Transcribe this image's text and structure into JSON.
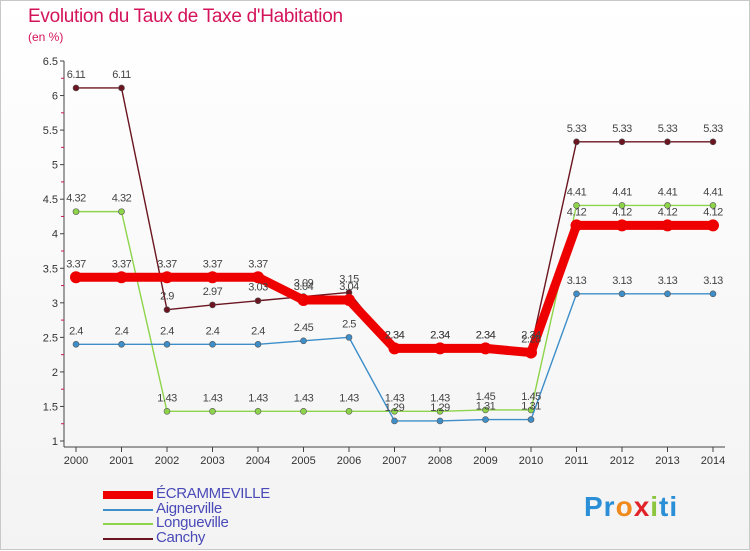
{
  "chart_data": {
    "type": "line",
    "title": "Evolution du Taux de Taxe d'Habitation",
    "subtitle": "(en %)",
    "x": [
      "2000",
      "2001",
      "2002",
      "2003",
      "2004",
      "2005",
      "2006",
      "2007",
      "2008",
      "2009",
      "2010",
      "2011",
      "2012",
      "2013",
      "2014"
    ],
    "ylim": [
      1,
      6.5
    ],
    "yticks": [
      "1",
      "1.5",
      "2",
      "2.5",
      "3",
      "3.5",
      "4",
      "4.5",
      "5",
      "5.5",
      "6",
      "6.5"
    ],
    "grid": false,
    "legend_position": "bottom-left",
    "series": [
      {
        "name": "ÉCRAMMEVILLE",
        "color": "#ee0000",
        "values": [
          3.37,
          3.37,
          3.37,
          3.37,
          3.37,
          3.04,
          3.04,
          2.34,
          2.34,
          2.34,
          2.28,
          4.12,
          4.12,
          4.12,
          4.12
        ],
        "labels": [
          "3.37",
          "3.37",
          "3.37",
          "3.37",
          "3.37",
          "3.04",
          "3.04",
          "2.34",
          "2.34",
          "2.34",
          "2.28",
          "4.12",
          "4.12",
          "4.12",
          "4.12"
        ]
      },
      {
        "name": "Aignerville",
        "color": "#3d8ec9",
        "values": [
          2.4,
          2.4,
          2.4,
          2.4,
          2.4,
          2.45,
          2.5,
          1.29,
          1.29,
          1.31,
          1.31,
          3.13,
          3.13,
          3.13,
          3.13
        ],
        "labels": [
          "2.4",
          "2.4",
          "2.4",
          "2.4",
          "2.4",
          "2.45",
          "2.5",
          "1.29",
          "1.29",
          "1.31",
          "1.31",
          "3.13",
          "3.13",
          "3.13",
          "3.13"
        ]
      },
      {
        "name": "Longueville",
        "color": "#8ed44a",
        "values": [
          4.32,
          4.32,
          1.43,
          1.43,
          1.43,
          1.43,
          1.43,
          1.43,
          1.43,
          1.45,
          1.45,
          4.41,
          4.41,
          4.41,
          4.41
        ],
        "labels": [
          "4.32",
          "4.32",
          "1.43",
          "1.43",
          "1.43",
          "1.43",
          "1.43",
          "1.43",
          "1.43",
          "1.45",
          "1.45",
          "4.41",
          "4.41",
          "4.41",
          "4.41"
        ]
      },
      {
        "name": "Canchy",
        "color": "#6b1520",
        "values": [
          6.11,
          6.11,
          2.9,
          2.97,
          3.03,
          3.09,
          3.15,
          2.34,
          2.34,
          2.34,
          2.34,
          5.33,
          5.33,
          5.33,
          5.33
        ],
        "labels": [
          "6.11",
          "6.11",
          "2.9",
          "2.97",
          "3.03",
          "3.09",
          "3.15",
          "2.34",
          "2.34",
          "2.34",
          "2.34",
          "5.33",
          "5.33",
          "5.33",
          "5.33"
        ]
      }
    ]
  },
  "logo": {
    "text_parts": [
      "Pr",
      "o",
      "x",
      "i",
      "ti"
    ],
    "colors": [
      "#2a8fd6",
      "#f08a1c",
      "#e0242a",
      "#8cc63f",
      "#2a8fd6"
    ]
  }
}
